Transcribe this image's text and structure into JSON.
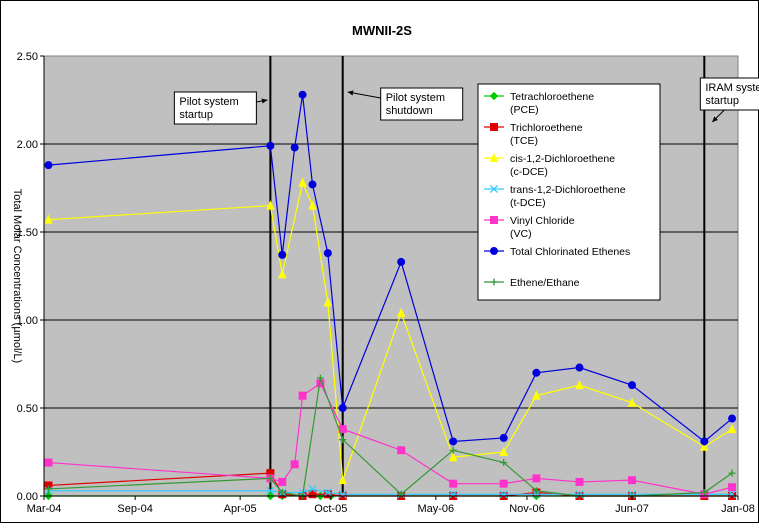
{
  "chart_data": {
    "type": "line",
    "title": "MWNII-2S",
    "ylabel": "Total Molar Concentrations (µmol/L)",
    "xlabel": "",
    "ylim": [
      0,
      2.5
    ],
    "y_ticks": [
      "0.00",
      "0.50",
      "1.00",
      "1.50",
      "2.00",
      "2.50"
    ],
    "y_tick_values": [
      0,
      0.5,
      1.0,
      1.5,
      2.0,
      2.5
    ],
    "x_ticks": [
      "Mar-04",
      "Sep-04",
      "Apr-05",
      "Oct-05",
      "May-06",
      "Nov-06",
      "Jun-07",
      "Jan-08"
    ],
    "x_tick_values": [
      "2004-03-01",
      "2004-09-01",
      "2005-04-01",
      "2005-10-01",
      "2006-05-01",
      "2006-11-01",
      "2007-06-01",
      "2008-01-01"
    ],
    "xlim": [
      "2004-03-01",
      "2008-01-01"
    ],
    "grid": "horizontal",
    "background": "#c0c0c0",
    "legend_position": "top-right",
    "series": [
      {
        "name": "Tetrachloroethene\n(PCE)",
        "color": "#00cc00",
        "marker": "diamond",
        "x": [
          "2004-03-10",
          "2005-06-01",
          "2005-06-25",
          "2005-08-05",
          "2005-09-10",
          "2005-10-01",
          "2005-10-25",
          "2006-02-20",
          "2006-06-05",
          "2006-09-15",
          "2006-11-20",
          "2007-02-15",
          "2007-06-01",
          "2007-10-25",
          "2007-12-20"
        ],
        "y": [
          0.0,
          0.0,
          0.0,
          0.0,
          0.0,
          0.0,
          0.0,
          0.0,
          0.0,
          0.0,
          0.0,
          0.0,
          0.0,
          0.0,
          0.0
        ]
      },
      {
        "name": "Trichloroethene\n(TCE)",
        "color": "#e00000",
        "marker": "square",
        "x": [
          "2004-03-10",
          "2005-06-01",
          "2005-06-25",
          "2005-08-05",
          "2005-08-25",
          "2005-09-25",
          "2005-10-25",
          "2006-02-20",
          "2006-06-05",
          "2006-09-15",
          "2006-11-20",
          "2007-02-15",
          "2007-06-01",
          "2007-10-25",
          "2007-12-20"
        ],
        "y": [
          0.06,
          0.13,
          0.01,
          0.0,
          0.01,
          0.01,
          0.0,
          0.0,
          0.0,
          0.0,
          0.02,
          0.0,
          0.0,
          0.0,
          0.0
        ]
      },
      {
        "name": "cis-1,2-Dichloroethene\n(c-DCE)",
        "color": "#ffff00",
        "marker": "triangle",
        "x": [
          "2004-03-10",
          "2005-06-01",
          "2005-06-25",
          "2005-08-05",
          "2005-08-25",
          "2005-09-25",
          "2005-10-25",
          "2006-02-20",
          "2006-06-05",
          "2006-09-15",
          "2006-11-20",
          "2007-02-15",
          "2007-06-01",
          "2007-10-25",
          "2007-12-20"
        ],
        "y": [
          1.57,
          1.65,
          1.26,
          1.78,
          1.65,
          1.1,
          0.09,
          1.04,
          0.22,
          0.25,
          0.57,
          0.63,
          0.53,
          0.28,
          0.38
        ]
      },
      {
        "name": "trans-1,2-Dichloroethene\n(t-DCE)",
        "color": "#33ccff",
        "marker": "x",
        "x": [
          "2004-03-10",
          "2005-06-01",
          "2005-06-25",
          "2005-08-05",
          "2005-08-25",
          "2005-09-25",
          "2005-10-25",
          "2006-02-20",
          "2006-06-05",
          "2006-09-15",
          "2006-11-20",
          "2007-02-15",
          "2007-06-01",
          "2007-10-25",
          "2007-12-20"
        ],
        "y": [
          0.03,
          0.03,
          0.02,
          0.02,
          0.04,
          0.02,
          0.01,
          0.01,
          0.01,
          0.01,
          0.01,
          0.01,
          0.01,
          0.01,
          0.01
        ]
      },
      {
        "name": "Vinyl Chloride\n(VC)",
        "color": "#ff33cc",
        "marker": "square",
        "x": [
          "2004-03-10",
          "2005-06-01",
          "2005-06-25",
          "2005-07-20",
          "2005-08-05",
          "2005-09-10",
          "2005-10-25",
          "2006-02-20",
          "2006-06-05",
          "2006-09-15",
          "2006-11-20",
          "2007-02-15",
          "2007-06-01",
          "2007-10-25",
          "2007-12-20"
        ],
        "y": [
          0.19,
          0.1,
          0.08,
          0.18,
          0.57,
          0.64,
          0.38,
          0.26,
          0.07,
          0.07,
          0.1,
          0.08,
          0.09,
          0.01,
          0.05
        ]
      },
      {
        "name": "Total Chlorinated Ethenes",
        "color": "#0000dd",
        "marker": "circle",
        "x": [
          "2004-03-10",
          "2005-06-01",
          "2005-06-25",
          "2005-07-20",
          "2005-08-05",
          "2005-08-25",
          "2005-09-25",
          "2005-10-25",
          "2006-02-20",
          "2006-06-05",
          "2006-09-15",
          "2006-11-20",
          "2007-02-15",
          "2007-06-01",
          "2007-10-25",
          "2007-12-20"
        ],
        "y": [
          1.88,
          1.99,
          1.37,
          1.98,
          2.28,
          1.77,
          1.38,
          0.5,
          1.33,
          0.31,
          0.33,
          0.7,
          0.73,
          0.63,
          0.31,
          0.44
        ]
      },
      {
        "name": "Ethene/Ethane",
        "color": "#339933",
        "marker": "plus",
        "x": [
          "2004-03-10",
          "2005-06-01",
          "2005-06-25",
          "2005-08-05",
          "2005-09-10",
          "2005-10-25",
          "2006-02-20",
          "2006-06-05",
          "2006-09-15",
          "2006-11-20",
          "2007-02-15",
          "2007-06-01",
          "2007-10-25",
          "2007-12-20"
        ],
        "y": [
          0.04,
          0.1,
          0.02,
          0.0,
          0.67,
          0.32,
          0.01,
          0.26,
          0.19,
          0.03,
          0.0,
          0.0,
          0.02,
          0.13
        ]
      }
    ],
    "event_lines": [
      {
        "x": "2005-06-01",
        "label": "Pilot system\nstartup"
      },
      {
        "x": "2005-10-25",
        "label": "Pilot system\nshutdown"
      },
      {
        "x": "2007-10-25",
        "label": "IRAM system\nstartup"
      }
    ]
  }
}
